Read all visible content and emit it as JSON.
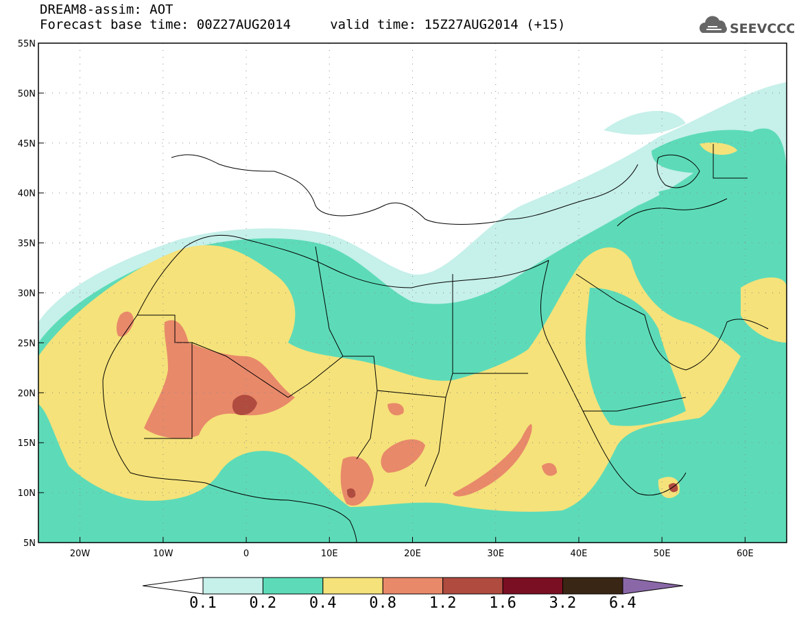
{
  "header": {
    "title_line1": "DREAM8-assim: AOT",
    "title_line2": "Forecast base time: 00Z27AUG2014     valid time: 15Z27AUG2014 (+15)"
  },
  "logo": {
    "text": "SEEVCCC",
    "icon": "cloud-icon"
  },
  "map": {
    "lat_labels": [
      "55N",
      "50N",
      "45N",
      "40N",
      "35N",
      "30N",
      "25N",
      "20N",
      "15N",
      "10N",
      "5N"
    ],
    "lat_values": [
      55,
      50,
      45,
      40,
      35,
      30,
      25,
      20,
      15,
      10,
      5
    ],
    "lon_labels": [
      "20W",
      "10W",
      "0",
      "10E",
      "20E",
      "30E",
      "40E",
      "50E",
      "60E"
    ],
    "lon_values": [
      -20,
      -10,
      0,
      10,
      20,
      30,
      40,
      50,
      60
    ],
    "extent": {
      "lon_min": -25,
      "lon_max": 65,
      "lat_min": 5,
      "lat_max": 55
    }
  },
  "colorbar": {
    "levels": [
      "0.1",
      "0.2",
      "0.4",
      "0.8",
      "1.2",
      "1.6",
      "3.2",
      "6.4"
    ],
    "colors": [
      "#ffffff",
      "#c6f0ea",
      "#5ddbb8",
      "#f5e27a",
      "#e8896a",
      "#b04b3f",
      "#7a0e22",
      "#3a2614",
      "#8a68a8"
    ]
  }
}
